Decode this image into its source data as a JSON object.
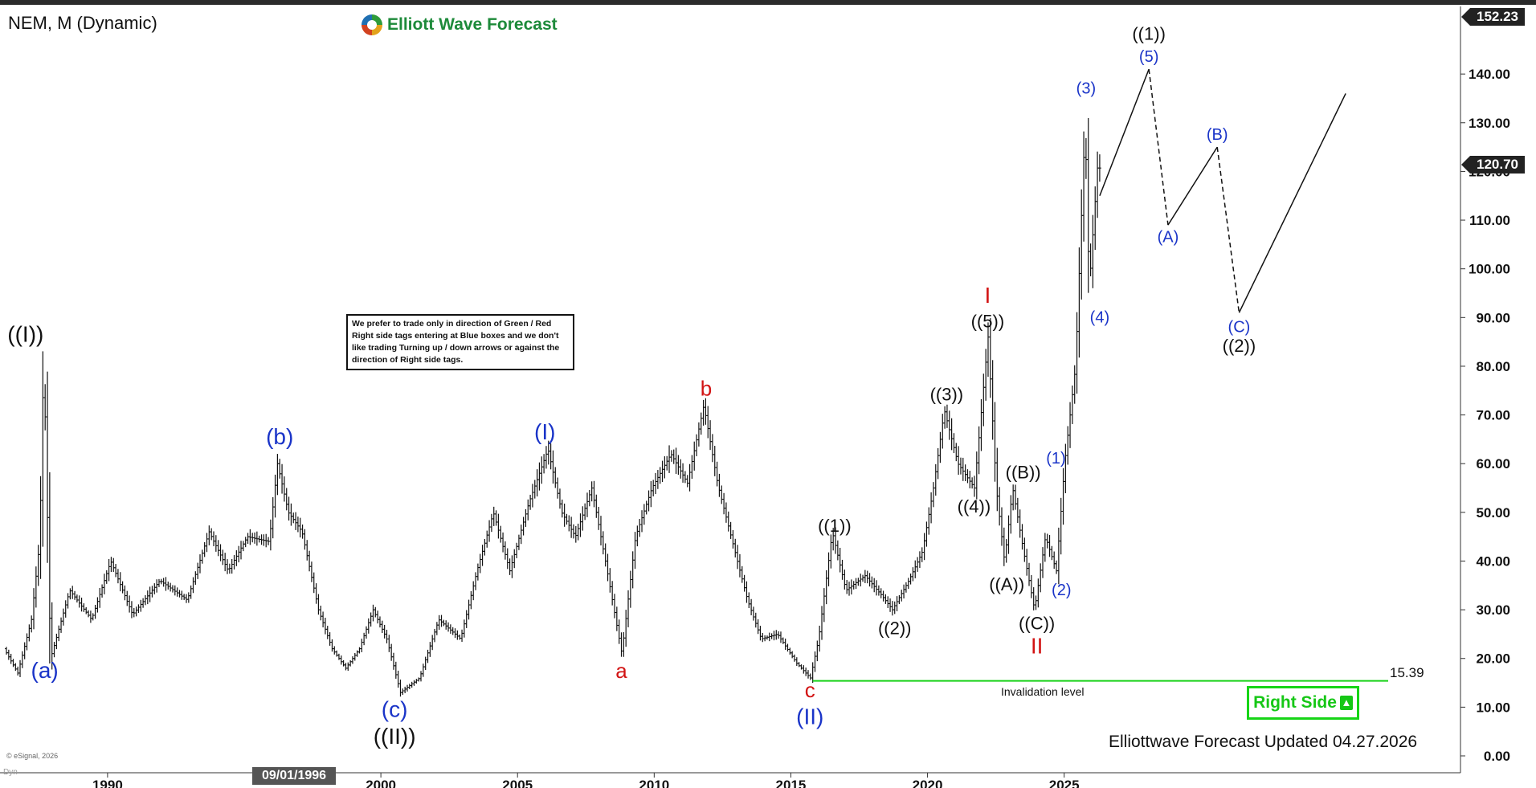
{
  "header": {
    "symbol": "NEM, M (Dynamic)",
    "logo_text": "Elliott Wave Forecast"
  },
  "note": "We prefer to trade only in direction of Green / Red Right side tags entering at Blue boxes and we don't like trading Turning up / down arrows or against the direction of Right side tags.",
  "right_side_tag": {
    "label": "Right Side",
    "icon": "up-arrow-icon",
    "color": "#16c716"
  },
  "footer": {
    "updated_text": "Elliottwave Forecast Updated 04.27.2026",
    "copyright": "© eSignal, 2026",
    "dyn_label": "Dyn",
    "crosshair_date": "09/01/1996"
  },
  "price_boxes": {
    "top": "152.23",
    "current": "120.70"
  },
  "invalidation": {
    "label": "Invalidation level",
    "value": "15.39",
    "price": 15.39,
    "color": "#19d219"
  },
  "chart_data": {
    "type": "bar",
    "title": "NEM, M (Dynamic)",
    "x_range": [
      1986.3,
      2039.5
    ],
    "y_range": [
      0,
      152.23
    ],
    "y_ticks": [
      "0.00",
      "10.00",
      "20.00",
      "30.00",
      "40.00",
      "50.00",
      "60.00",
      "70.00",
      "80.00",
      "90.00",
      "100.00",
      "110.00",
      "120.00",
      "130.00",
      "140.00"
    ],
    "x_ticks": [
      "1990",
      "2000",
      "2005",
      "2010",
      "2015",
      "2020",
      "2025"
    ],
    "price_anchors": [
      [
        1986.3,
        22
      ],
      [
        1986.8,
        17
      ],
      [
        1987.3,
        28
      ],
      [
        1987.6,
        44
      ],
      [
        1987.75,
        82
      ],
      [
        1988.0,
        20
      ],
      [
        1988.7,
        34
      ],
      [
        1989.5,
        28
      ],
      [
        1990.2,
        40
      ],
      [
        1991.0,
        29
      ],
      [
        1992.0,
        36
      ],
      [
        1993.0,
        32
      ],
      [
        1993.8,
        46
      ],
      [
        1994.5,
        38
      ],
      [
        1995.2,
        45
      ],
      [
        1996.0,
        44
      ],
      [
        1996.3,
        60
      ],
      [
        1996.7,
        50
      ],
      [
        1997.2,
        46
      ],
      [
        1997.8,
        30
      ],
      [
        1998.3,
        22
      ],
      [
        1998.8,
        18
      ],
      [
        1999.3,
        22
      ],
      [
        1999.8,
        30
      ],
      [
        2000.3,
        24
      ],
      [
        2000.8,
        13
      ],
      [
        2001.5,
        16
      ],
      [
        2002.2,
        28
      ],
      [
        2003.0,
        24
      ],
      [
        2003.6,
        38
      ],
      [
        2004.2,
        50
      ],
      [
        2004.8,
        38
      ],
      [
        2005.5,
        52
      ],
      [
        2006.2,
        63
      ],
      [
        2006.7,
        50
      ],
      [
        2007.2,
        45
      ],
      [
        2007.8,
        55
      ],
      [
        2008.3,
        40
      ],
      [
        2008.9,
        21
      ],
      [
        2009.4,
        45
      ],
      [
        2010.0,
        55
      ],
      [
        2010.7,
        62
      ],
      [
        2011.3,
        56
      ],
      [
        2011.9,
        72
      ],
      [
        2012.4,
        56
      ],
      [
        2012.9,
        45
      ],
      [
        2013.5,
        32
      ],
      [
        2014.0,
        24
      ],
      [
        2014.6,
        25
      ],
      [
        2015.3,
        19
      ],
      [
        2015.8,
        16
      ],
      [
        2016.1,
        24
      ],
      [
        2016.6,
        46
      ],
      [
        2017.1,
        34
      ],
      [
        2017.8,
        37
      ],
      [
        2018.4,
        33
      ],
      [
        2018.8,
        30
      ],
      [
        2019.4,
        36
      ],
      [
        2019.9,
        42
      ],
      [
        2020.3,
        55
      ],
      [
        2020.7,
        71
      ],
      [
        2021.2,
        60
      ],
      [
        2021.8,
        55
      ],
      [
        2022.3,
        86
      ],
      [
        2022.6,
        55
      ],
      [
        2022.9,
        40
      ],
      [
        2023.2,
        55
      ],
      [
        2023.6,
        42
      ],
      [
        2024.0,
        30
      ],
      [
        2024.4,
        45
      ],
      [
        2024.8,
        38
      ],
      [
        2025.1,
        60
      ],
      [
        2025.5,
        80
      ],
      [
        2025.85,
        130
      ],
      [
        2026.0,
        96
      ],
      [
        2026.3,
        120.7
      ]
    ],
    "projection_solid": [
      [
        2026.3,
        115
      ],
      [
        2028.1,
        141
      ]
    ],
    "projection_dashed_1": [
      [
        2028.1,
        141
      ],
      [
        2028.8,
        109
      ]
    ],
    "projection_solid_2": [
      [
        2028.8,
        109
      ],
      [
        2030.6,
        125
      ]
    ],
    "projection_dashed_2": [
      [
        2030.6,
        125
      ],
      [
        2031.4,
        91
      ]
    ],
    "projection_solid_3": [
      [
        2031.4,
        91
      ],
      [
        2035.3,
        136
      ]
    ],
    "labels": [
      {
        "text": "((I))",
        "x": 1987.0,
        "y": 85,
        "color": "#111111",
        "size": 28
      },
      {
        "text": "(a)",
        "x": 1987.7,
        "y": 16,
        "color": "#1a34c8",
        "size": 28
      },
      {
        "text": "(b)",
        "x": 1996.3,
        "y": 64,
        "color": "#1a34c8",
        "size": 28
      },
      {
        "text": "(c)",
        "x": 2000.5,
        "y": 8,
        "color": "#1a34c8",
        "size": 28
      },
      {
        "text": "((II))",
        "x": 2000.5,
        "y": 2.5,
        "color": "#111111",
        "size": 28
      },
      {
        "text": "(I)",
        "x": 2006.0,
        "y": 65,
        "color": "#1a34c8",
        "size": 28
      },
      {
        "text": "a",
        "x": 2008.8,
        "y": 16,
        "color": "#d21414",
        "size": 26
      },
      {
        "text": "b",
        "x": 2011.9,
        "y": 74,
        "color": "#d21414",
        "size": 26
      },
      {
        "text": "c",
        "x": 2015.7,
        "y": 12,
        "color": "#d21414",
        "size": 26
      },
      {
        "text": "(II)",
        "x": 2015.7,
        "y": 6.5,
        "color": "#1a34c8",
        "size": 28
      },
      {
        "text": "((1))",
        "x": 2016.6,
        "y": 46,
        "color": "#111111",
        "size": 22
      },
      {
        "text": "((2))",
        "x": 2018.8,
        "y": 25,
        "color": "#111111",
        "size": 22
      },
      {
        "text": "((3))",
        "x": 2020.7,
        "y": 73,
        "color": "#111111",
        "size": 22
      },
      {
        "text": "((4))",
        "x": 2021.7,
        "y": 50,
        "color": "#111111",
        "size": 22
      },
      {
        "text": "((5))",
        "x": 2022.2,
        "y": 88,
        "color": "#111111",
        "size": 22
      },
      {
        "text": "I",
        "x": 2022.2,
        "y": 93,
        "color": "#d21414",
        "size": 28
      },
      {
        "text": "((A))",
        "x": 2022.9,
        "y": 34,
        "color": "#111111",
        "size": 22
      },
      {
        "text": "((B))",
        "x": 2023.5,
        "y": 57,
        "color": "#111111",
        "size": 22
      },
      {
        "text": "((C))",
        "x": 2024.0,
        "y": 26,
        "color": "#111111",
        "size": 22
      },
      {
        "text": "II",
        "x": 2024.0,
        "y": 21,
        "color": "#d21414",
        "size": 28
      },
      {
        "text": "(1)",
        "x": 2024.7,
        "y": 60,
        "color": "#1a34c8",
        "size": 20
      },
      {
        "text": "(2)",
        "x": 2024.9,
        "y": 33,
        "color": "#1a34c8",
        "size": 20
      },
      {
        "text": "(3)",
        "x": 2025.8,
        "y": 136,
        "color": "#1a34c8",
        "size": 20
      },
      {
        "text": "(4)",
        "x": 2026.3,
        "y": 89,
        "color": "#1a34c8",
        "size": 20
      },
      {
        "text": "(5)",
        "x": 2028.1,
        "y": 142.5,
        "color": "#1a34c8",
        "size": 20
      },
      {
        "text": "((1))",
        "x": 2028.1,
        "y": 147,
        "color": "#111111",
        "size": 22
      },
      {
        "text": "(A)",
        "x": 2028.8,
        "y": 105.5,
        "color": "#1a34c8",
        "size": 20
      },
      {
        "text": "(B)",
        "x": 2030.6,
        "y": 126.5,
        "color": "#1a34c8",
        "size": 20
      },
      {
        "text": "(C)",
        "x": 2031.4,
        "y": 87,
        "color": "#1a34c8",
        "size": 20
      },
      {
        "text": "((2))",
        "x": 2031.4,
        "y": 83,
        "color": "#111111",
        "size": 22
      }
    ]
  }
}
